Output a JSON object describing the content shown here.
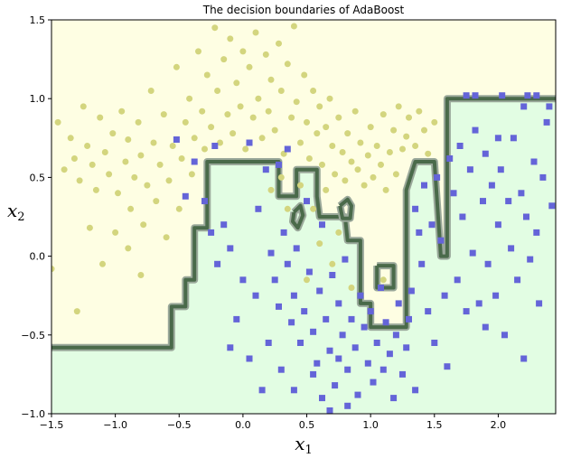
{
  "chart_data": {
    "type": "scatter",
    "title": "The decision boundaries of AdaBoost",
    "xlabel": {
      "base": "x",
      "sub": "1"
    },
    "ylabel": {
      "base": "x",
      "sub": "2"
    },
    "xlim": [
      -1.5,
      2.45
    ],
    "ylim": [
      -1.0,
      1.5
    ],
    "xticks": [
      -1.5,
      -1.0,
      -0.5,
      0.0,
      0.5,
      1.0,
      1.5,
      2.0
    ],
    "xtick_labels": [
      "−1.5",
      "−1.0",
      "−0.5",
      "0.0",
      "0.5",
      "1.0",
      "1.5",
      "2.0"
    ],
    "yticks": [
      -1.0,
      -0.5,
      0.0,
      0.5,
      1.0,
      1.5
    ],
    "ytick_labels": [
      "−1.0",
      "−0.5",
      "0.0",
      "0.5",
      "1.0",
      "1.5"
    ],
    "grid": false,
    "colors": {
      "region_class0": "#fefee3",
      "region_class1": "#e2fde3",
      "class0_marker": "#d3d57e",
      "class1_marker": "#6464d8",
      "boundary": "#4a6a4a",
      "boundary_halo": "#9aa89a"
    },
    "boundary": [
      [
        -1.5,
        -0.58
      ],
      [
        -0.56,
        -0.58
      ],
      [
        -0.56,
        -0.32
      ],
      [
        -0.45,
        -0.32
      ],
      [
        -0.45,
        -0.15
      ],
      [
        -0.38,
        -0.15
      ],
      [
        -0.38,
        0.18
      ],
      [
        -0.28,
        0.18
      ],
      [
        -0.28,
        0.6
      ],
      [
        0.28,
        0.6
      ],
      [
        0.28,
        0.38
      ],
      [
        0.42,
        0.38
      ],
      [
        0.42,
        0.55
      ],
      [
        0.58,
        0.55
      ],
      [
        0.58,
        0.38
      ],
      [
        0.6,
        0.25
      ],
      [
        0.8,
        0.25
      ],
      [
        0.82,
        0.1
      ],
      [
        0.92,
        0.1
      ],
      [
        0.92,
        -0.3
      ],
      [
        1.0,
        -0.3
      ],
      [
        1.0,
        -0.45
      ],
      [
        1.28,
        -0.45
      ],
      [
        1.28,
        0.42
      ],
      [
        1.35,
        0.6
      ],
      [
        1.5,
        0.6
      ],
      [
        1.55,
        0.0
      ],
      [
        1.6,
        0.0
      ],
      [
        1.6,
        1.0
      ],
      [
        2.45,
        1.0
      ]
    ],
    "boundary_islands": [
      [
        [
          0.76,
          0.32
        ],
        [
          0.82,
          0.36
        ],
        [
          0.85,
          0.32
        ],
        [
          0.84,
          0.24
        ],
        [
          0.78,
          0.24
        ]
      ],
      [
        [
          0.4,
          0.28
        ],
        [
          0.45,
          0.32
        ],
        [
          0.47,
          0.26
        ],
        [
          0.43,
          0.18
        ],
        [
          0.39,
          0.22
        ]
      ],
      [
        [
          1.05,
          -0.06
        ],
        [
          1.18,
          -0.06
        ],
        [
          1.18,
          -0.2
        ],
        [
          1.05,
          -0.2
        ]
      ]
    ],
    "series": [
      {
        "class": 0,
        "marker": "circle",
        "points": [
          [
            -1.45,
            0.85
          ],
          [
            -1.4,
            0.55
          ],
          [
            -1.35,
            0.75
          ],
          [
            -1.32,
            0.62
          ],
          [
            -1.28,
            0.48
          ],
          [
            -1.25,
            0.95
          ],
          [
            -1.22,
            0.7
          ],
          [
            -1.18,
            0.58
          ],
          [
            -1.15,
            0.42
          ],
          [
            -1.12,
            0.88
          ],
          [
            -1.08,
            0.66
          ],
          [
            -1.05,
            0.52
          ],
          [
            -1.02,
            0.78
          ],
          [
            -0.98,
            0.4
          ],
          [
            -0.95,
            0.92
          ],
          [
            -0.92,
            0.6
          ],
          [
            -0.9,
            0.74
          ],
          [
            -0.88,
            0.3
          ],
          [
            -0.85,
            0.5
          ],
          [
            -0.82,
            0.85
          ],
          [
            -0.8,
            0.64
          ],
          [
            -0.78,
            0.2
          ],
          [
            -0.75,
            0.45
          ],
          [
            -0.72,
            1.05
          ],
          [
            -0.7,
            0.72
          ],
          [
            -0.68,
            0.35
          ],
          [
            -0.65,
            0.58
          ],
          [
            -0.62,
            0.9
          ],
          [
            -0.6,
            0.12
          ],
          [
            -0.58,
            0.48
          ],
          [
            -0.55,
            0.7
          ],
          [
            -0.52,
            1.2
          ],
          [
            -0.5,
            0.3
          ],
          [
            -0.48,
            0.62
          ],
          [
            -0.45,
            0.85
          ],
          [
            -0.42,
            1.0
          ],
          [
            -0.4,
            0.52
          ],
          [
            -0.38,
            0.75
          ],
          [
            -0.35,
            1.3
          ],
          [
            -0.32,
            0.92
          ],
          [
            -0.3,
            0.68
          ],
          [
            -0.28,
            1.15
          ],
          [
            -0.25,
            0.82
          ],
          [
            -0.22,
            1.45
          ],
          [
            -0.2,
            1.05
          ],
          [
            -0.18,
            0.72
          ],
          [
            -0.15,
            1.25
          ],
          [
            -0.12,
            0.9
          ],
          [
            -0.1,
            1.38
          ],
          [
            -0.08,
            0.78
          ],
          [
            -0.05,
            1.1
          ],
          [
            -0.02,
            0.95
          ],
          [
            0.0,
            1.3
          ],
          [
            0.02,
            0.68
          ],
          [
            0.05,
            1.2
          ],
          [
            0.08,
            0.88
          ],
          [
            0.1,
            1.42
          ],
          [
            0.12,
            1.0
          ],
          [
            0.15,
            0.75
          ],
          [
            0.18,
            1.28
          ],
          [
            0.2,
            0.92
          ],
          [
            0.22,
            1.12
          ],
          [
            0.25,
            0.8
          ],
          [
            0.28,
            1.35
          ],
          [
            0.3,
            1.05
          ],
          [
            0.32,
            0.65
          ],
          [
            0.35,
            1.22
          ],
          [
            0.38,
            0.88
          ],
          [
            0.4,
            1.46
          ],
          [
            0.42,
            0.98
          ],
          [
            0.45,
            0.72
          ],
          [
            0.48,
            1.15
          ],
          [
            0.5,
            0.85
          ],
          [
            0.52,
            0.62
          ],
          [
            0.55,
            1.05
          ],
          [
            0.58,
            0.78
          ],
          [
            0.6,
            0.95
          ],
          [
            0.62,
            0.58
          ],
          [
            0.65,
            0.82
          ],
          [
            0.68,
            1.0
          ],
          [
            0.7,
            0.7
          ],
          [
            0.72,
            0.52
          ],
          [
            0.75,
            0.88
          ],
          [
            0.78,
            0.66
          ],
          [
            0.8,
            0.48
          ],
          [
            0.82,
            0.78
          ],
          [
            0.85,
            0.6
          ],
          [
            0.88,
            0.92
          ],
          [
            0.9,
            0.55
          ],
          [
            0.92,
            0.72
          ],
          [
            0.95,
            0.45
          ],
          [
            0.98,
            0.64
          ],
          [
            1.0,
            0.82
          ],
          [
            1.02,
            0.5
          ],
          [
            1.05,
            0.7
          ],
          [
            1.08,
            0.58
          ],
          [
            1.1,
            0.9
          ],
          [
            1.12,
            0.42
          ],
          [
            1.15,
            0.66
          ],
          [
            1.18,
            0.8
          ],
          [
            1.2,
            0.52
          ],
          [
            1.22,
            0.95
          ],
          [
            1.25,
            0.68
          ],
          [
            1.28,
            0.76
          ],
          [
            1.3,
            0.88
          ],
          [
            1.35,
            0.7
          ],
          [
            1.38,
            0.92
          ],
          [
            1.42,
            0.8
          ],
          [
            1.45,
            0.65
          ],
          [
            1.5,
            0.85
          ],
          [
            -1.5,
            -0.08
          ],
          [
            -1.3,
            -0.35
          ],
          [
            -1.1,
            -0.05
          ],
          [
            -0.9,
            0.05
          ],
          [
            -0.8,
            -0.12
          ],
          [
            -1.0,
            0.15
          ],
          [
            -1.2,
            0.18
          ],
          [
            0.22,
            0.42
          ],
          [
            0.3,
            0.5
          ],
          [
            0.45,
            0.45
          ],
          [
            0.55,
            0.3
          ],
          [
            0.65,
            0.42
          ],
          [
            0.35,
            0.3
          ],
          [
            0.6,
            0.08
          ],
          [
            0.75,
            0.15
          ],
          [
            0.5,
            -0.15
          ],
          [
            0.85,
            -0.2
          ],
          [
            0.7,
            -0.05
          ],
          [
            1.1,
            -0.15
          ]
        ]
      },
      {
        "class": 1,
        "marker": "square",
        "points": [
          [
            -0.52,
            0.74
          ],
          [
            -0.45,
            0.38
          ],
          [
            -0.38,
            0.6
          ],
          [
            -0.3,
            0.35
          ],
          [
            -0.22,
            0.7
          ],
          [
            -0.15,
            0.2
          ],
          [
            -0.1,
            0.05
          ],
          [
            -0.2,
            -0.05
          ],
          [
            -0.25,
            0.15
          ],
          [
            0.05,
            0.72
          ],
          [
            0.12,
            0.3
          ],
          [
            0.18,
            0.55
          ],
          [
            0.22,
            0.02
          ],
          [
            0.25,
            -0.15
          ],
          [
            0.28,
            -0.32
          ],
          [
            0.32,
            0.15
          ],
          [
            0.35,
            -0.05
          ],
          [
            0.38,
            -0.42
          ],
          [
            0.4,
            -0.25
          ],
          [
            0.42,
            0.05
          ],
          [
            0.45,
            -0.55
          ],
          [
            0.48,
            -0.35
          ],
          [
            0.5,
            0.35
          ],
          [
            0.52,
            -0.1
          ],
          [
            0.55,
            -0.48
          ],
          [
            0.58,
            -0.68
          ],
          [
            0.6,
            -0.22
          ],
          [
            0.62,
            0.2
          ],
          [
            0.65,
            -0.4
          ],
          [
            0.68,
            -0.6
          ],
          [
            0.7,
            -0.12
          ],
          [
            0.72,
            -0.82
          ],
          [
            0.75,
            -0.3
          ],
          [
            0.78,
            -0.5
          ],
          [
            0.8,
            -0.02
          ],
          [
            0.82,
            -0.72
          ],
          [
            0.85,
            -0.4
          ],
          [
            0.88,
            -0.58
          ],
          [
            0.9,
            -0.88
          ],
          [
            0.92,
            -0.25
          ],
          [
            0.95,
            -0.45
          ],
          [
            0.98,
            -0.68
          ],
          [
            1.0,
            -0.35
          ],
          [
            1.02,
            -0.8
          ],
          [
            1.05,
            -0.55
          ],
          [
            1.08,
            -0.2
          ],
          [
            1.1,
            -0.72
          ],
          [
            1.12,
            -0.42
          ],
          [
            1.15,
            -0.62
          ],
          [
            1.18,
            -0.9
          ],
          [
            1.2,
            -0.5
          ],
          [
            1.22,
            -0.3
          ],
          [
            1.25,
            -0.75
          ],
          [
            1.28,
            -0.58
          ],
          [
            1.3,
            -0.4
          ],
          [
            1.32,
            -0.22
          ],
          [
            1.35,
            0.3
          ],
          [
            1.38,
            0.15
          ],
          [
            1.4,
            -0.05
          ],
          [
            1.42,
            0.45
          ],
          [
            1.45,
            -0.35
          ],
          [
            1.48,
            0.2
          ],
          [
            1.5,
            -0.55
          ],
          [
            1.52,
            0.5
          ],
          [
            1.55,
            0.1
          ],
          [
            1.58,
            -0.25
          ],
          [
            1.62,
            0.62
          ],
          [
            1.65,
            0.4
          ],
          [
            1.68,
            -0.15
          ],
          [
            1.7,
            0.7
          ],
          [
            1.72,
            0.25
          ],
          [
            1.75,
            -0.35
          ],
          [
            1.78,
            0.55
          ],
          [
            1.8,
            0.02
          ],
          [
            1.82,
            0.8
          ],
          [
            1.85,
            -0.3
          ],
          [
            1.88,
            0.35
          ],
          [
            1.9,
            0.65
          ],
          [
            1.92,
            -0.05
          ],
          [
            1.95,
            0.45
          ],
          [
            1.98,
            -0.25
          ],
          [
            2.0,
            0.2
          ],
          [
            2.02,
            0.55
          ],
          [
            2.05,
            -0.5
          ],
          [
            2.08,
            0.35
          ],
          [
            2.1,
            0.05
          ],
          [
            2.12,
            0.75
          ],
          [
            2.15,
            -0.15
          ],
          [
            2.18,
            0.4
          ],
          [
            2.2,
            0.95
          ],
          [
            2.22,
            0.25
          ],
          [
            2.25,
            -0.02
          ],
          [
            2.28,
            0.6
          ],
          [
            2.3,
            0.15
          ],
          [
            2.32,
            -0.3
          ],
          [
            2.35,
            0.5
          ],
          [
            2.38,
            0.85
          ],
          [
            2.42,
            0.32
          ],
          [
            0.35,
            0.68
          ],
          [
            0.28,
            0.58
          ],
          [
            0.55,
            -0.75
          ],
          [
            0.62,
            -0.9
          ],
          [
            0.68,
            -0.98
          ],
          [
            0.75,
            -0.65
          ],
          [
            0.82,
            -0.95
          ],
          [
            0.3,
            -0.72
          ],
          [
            0.15,
            -0.85
          ],
          [
            0.2,
            -0.55
          ],
          [
            0.05,
            -0.65
          ],
          [
            -0.05,
            -0.4
          ],
          [
            0.1,
            -0.25
          ],
          [
            0.0,
            -0.15
          ],
          [
            -0.1,
            -0.58
          ],
          [
            0.4,
            -0.85
          ],
          [
            1.35,
            -0.85
          ],
          [
            1.6,
            -0.7
          ],
          [
            1.9,
            -0.45
          ],
          [
            2.2,
            -0.65
          ],
          [
            1.75,
            1.02
          ],
          [
            1.82,
            1.02
          ],
          [
            2.03,
            1.02
          ],
          [
            2.23,
            1.02
          ],
          [
            2.4,
            0.95
          ],
          [
            2.3,
            1.02
          ],
          [
            2.0,
            0.75
          ]
        ]
      }
    ]
  }
}
